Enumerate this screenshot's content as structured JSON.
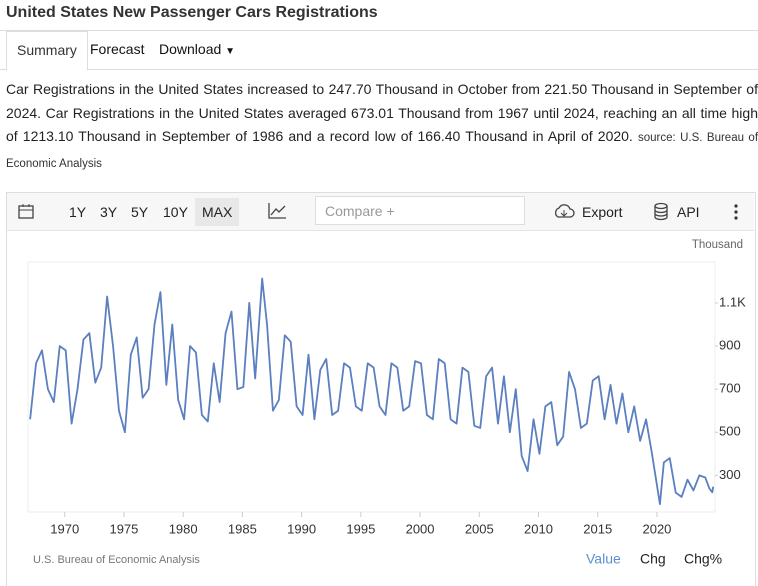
{
  "header": {
    "title": "United States New Passenger Cars Registrations"
  },
  "tabs": [
    "Summary",
    "Forecast",
    "Download"
  ],
  "description": {
    "text": "Car Registrations in the United States increased to 247.70 Thousand in October from 221.50 Thousand in September of 2024. Car Registrations in the United States averaged 673.01 Thousand from 1967 until 2024, reaching an all time high of 1213.10 Thousand in September of 1986 and a record low of 166.40 Thousand in April of 2020.",
    "source": "source: U.S. Bureau of Economic Analysis"
  },
  "toolbar": {
    "ranges": [
      "1Y",
      "3Y",
      "5Y",
      "10Y",
      "MAX"
    ],
    "compare": "Compare +",
    "export": "Export",
    "api": "API"
  },
  "footer": {
    "credit": "U.S. Bureau of Economic Analysis",
    "views": [
      "Value",
      "Chg",
      "Chg%"
    ]
  },
  "chart_data": {
    "type": "line",
    "unit": "Thousand",
    "grid": false,
    "xlim": [
      1966.9,
      2024.9
    ],
    "xticks": [
      1970,
      1975,
      1980,
      1985,
      1990,
      1995,
      2000,
      2005,
      2010,
      2015,
      2020
    ],
    "ylim": [
      130,
      1290
    ],
    "yticks": [
      300,
      500,
      700,
      900,
      {
        "value": 1100,
        "label": "1.1K"
      }
    ],
    "x": [
      1967.08,
      1967.58,
      1968.08,
      1968.58,
      1969.08,
      1969.58,
      1970.08,
      1970.58,
      1971.08,
      1971.58,
      1972.08,
      1972.58,
      1973.08,
      1973.58,
      1974.08,
      1974.58,
      1975.08,
      1975.58,
      1976.08,
      1976.58,
      1977.08,
      1977.58,
      1978.08,
      1978.58,
      1979.08,
      1979.58,
      1980.08,
      1980.58,
      1981.08,
      1981.58,
      1982.08,
      1982.58,
      1983.08,
      1983.58,
      1984.08,
      1984.58,
      1985.08,
      1985.58,
      1986.08,
      1986.67,
      1987.08,
      1987.58,
      1988.08,
      1988.58,
      1989.08,
      1989.58,
      1990.08,
      1990.58,
      1991.08,
      1991.58,
      1992.08,
      1992.58,
      1993.08,
      1993.58,
      1994.08,
      1994.58,
      1995.08,
      1995.58,
      1996.08,
      1996.58,
      1997.08,
      1997.58,
      1998.08,
      1998.58,
      1999.08,
      1999.58,
      2000.08,
      2000.58,
      2001.08,
      2001.58,
      2002.08,
      2002.58,
      2003.08,
      2003.58,
      2004.08,
      2004.58,
      2005.08,
      2005.58,
      2006.08,
      2006.58,
      2007.08,
      2007.58,
      2008.08,
      2008.58,
      2009.08,
      2009.58,
      2010.08,
      2010.58,
      2011.08,
      2011.58,
      2012.08,
      2012.58,
      2013.08,
      2013.58,
      2014.08,
      2014.58,
      2015.08,
      2015.58,
      2016.08,
      2016.58,
      2017.08,
      2017.58,
      2018.08,
      2018.58,
      2019.08,
      2019.58,
      2020.25,
      2020.58,
      2021.08,
      2021.58,
      2022.08,
      2022.58,
      2023.08,
      2023.58,
      2024.08,
      2024.42,
      2024.67,
      2024.75
    ],
    "series": [
      {
        "name": "Value",
        "color": "#5b7fbf",
        "values": [
          560,
          820,
          880,
          700,
          640,
          900,
          880,
          540,
          700,
          930,
          960,
          730,
          800,
          1130,
          900,
          600,
          500,
          860,
          940,
          660,
          700,
          1000,
          1150,
          720,
          1000,
          650,
          560,
          900,
          870,
          580,
          550,
          820,
          640,
          960,
          1060,
          700,
          710,
          1100,
          750,
          1213.1,
          1000,
          600,
          650,
          950,
          920,
          620,
          580,
          860,
          560,
          790,
          840,
          580,
          600,
          820,
          800,
          620,
          600,
          820,
          800,
          620,
          580,
          820,
          800,
          600,
          620,
          830,
          820,
          580,
          560,
          840,
          820,
          560,
          540,
          800,
          780,
          530,
          520,
          760,
          800,
          540,
          760,
          500,
          700,
          390,
          320,
          560,
          400,
          620,
          640,
          440,
          480,
          780,
          700,
          520,
          540,
          740,
          760,
          560,
          720,
          540,
          680,
          500,
          620,
          460,
          560,
          400,
          166.4,
          360,
          380,
          220,
          200,
          280,
          230,
          300,
          290,
          240,
          221.5,
          247.7
        ]
      }
    ]
  }
}
